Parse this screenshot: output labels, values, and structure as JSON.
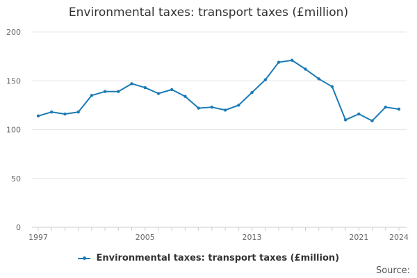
{
  "chart_data": {
    "type": "line",
    "title": "Environmental taxes: transport taxes (£million)",
    "xlabel": "",
    "ylabel": "",
    "ylim": [
      0,
      200
    ],
    "yticks": [
      0,
      50,
      100,
      150,
      200
    ],
    "xtick_labels": [
      "1997",
      "2005",
      "2013",
      "2021",
      "2024"
    ],
    "x": [
      1997,
      1998,
      1999,
      2000,
      2001,
      2002,
      2003,
      2004,
      2005,
      2006,
      2007,
      2008,
      2009,
      2010,
      2011,
      2012,
      2013,
      2014,
      2015,
      2016,
      2017,
      2018,
      2019,
      2020,
      2021,
      2022,
      2023,
      2024
    ],
    "series": [
      {
        "name": "Environmental taxes: transport taxes (£million)",
        "color": "#1a7ab5",
        "values": [
          114,
          118,
          116,
          118,
          135,
          139,
          139,
          147,
          143,
          137,
          141,
          134,
          122,
          123,
          120,
          125,
          138,
          151,
          169,
          171,
          162,
          152,
          144,
          110,
          116,
          109,
          123,
          121
        ]
      }
    ],
    "legend": "bottom-center",
    "source_label": "Source:"
  }
}
